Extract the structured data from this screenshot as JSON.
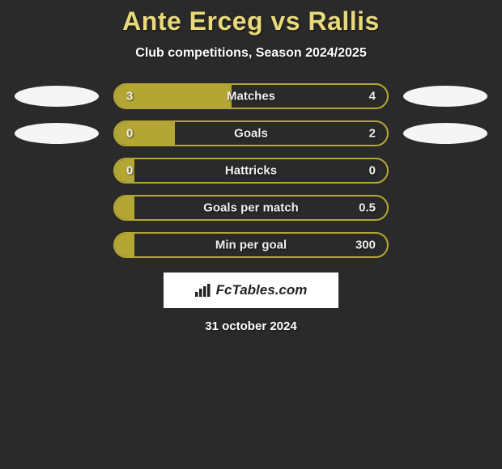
{
  "title": "Ante Erceg vs Rallis",
  "subtitle": "Club competitions, Season 2024/2025",
  "bars": [
    {
      "label": "Matches",
      "left_value": "3",
      "right_value": "4",
      "fill_percent": 42.8,
      "fill_color": "#b3a634",
      "border_color": "#b3a634",
      "show_ovals": true
    },
    {
      "label": "Goals",
      "left_value": "0",
      "right_value": "2",
      "fill_percent": 22,
      "fill_color": "#b3a634",
      "border_color": "#b3a634",
      "show_ovals": true
    },
    {
      "label": "Hattricks",
      "left_value": "0",
      "right_value": "0",
      "fill_percent": 7,
      "fill_color": "#b3a634",
      "border_color": "#b3a634",
      "show_ovals": false
    },
    {
      "label": "Goals per match",
      "left_value": "",
      "right_value": "0.5",
      "fill_percent": 7,
      "fill_color": "#b3a634",
      "border_color": "#b3a634",
      "show_ovals": false
    },
    {
      "label": "Min per goal",
      "left_value": "",
      "right_value": "300",
      "fill_percent": 7,
      "fill_color": "#b3a634",
      "border_color": "#b3a634",
      "show_ovals": false
    }
  ],
  "brand": "FcTables.com",
  "date": "31 october 2024",
  "colors": {
    "background": "#2a2a2a",
    "title": "#e8d97a",
    "text": "#ffffff",
    "oval": "#f5f5f5",
    "brand_bg": "#ffffff"
  }
}
